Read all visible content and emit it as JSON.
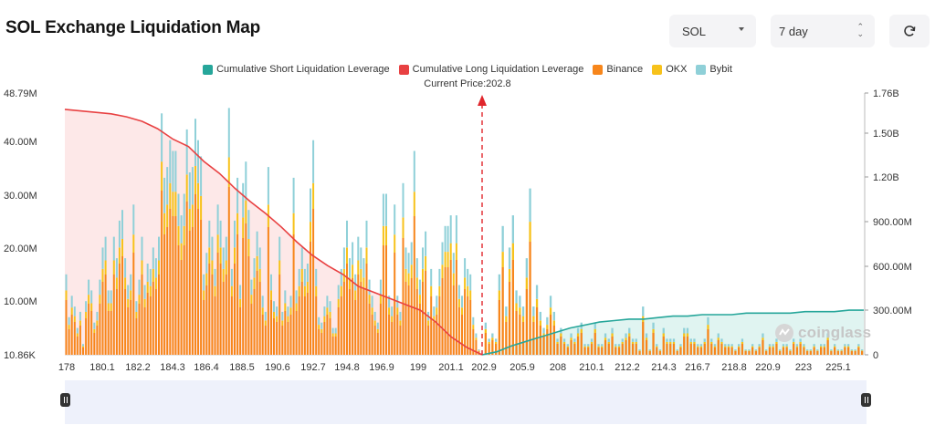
{
  "header": {
    "title": "SOL Exchange Liquidation Map",
    "asset_select": "SOL",
    "range_select": "7 day",
    "refresh_icon": "refresh-icon"
  },
  "legend": [
    {
      "label": "Cumulative Short Liquidation Leverage",
      "color": "#26a69a"
    },
    {
      "label": "Cumulative Long Liquidation Leverage",
      "color": "#e84142"
    },
    {
      "label": "Binance",
      "color": "#f7861b"
    },
    {
      "label": "OKX",
      "color": "#f7c21b"
    },
    {
      "label": "Bybit",
      "color": "#8fd0d8"
    }
  ],
  "current_price_label": "Current Price:202.8",
  "watermark": "coinglass",
  "chart_data": {
    "type": "bar",
    "current_price": 202.8,
    "x_ticks": [
      "178",
      "180.1",
      "182.2",
      "184.3",
      "186.4",
      "188.5",
      "190.6",
      "192.7",
      "194.8",
      "196.9",
      "199",
      "201.1",
      "202.9",
      "205.9",
      "208",
      "210.1",
      "212.2",
      "214.3",
      "216.7",
      "218.8",
      "220.9",
      "223",
      "225.1"
    ],
    "y_left_ticks": [
      "48.79M",
      "40.00M",
      "30.00M",
      "20.00M",
      "10.00M",
      "10.86K"
    ],
    "y_right_ticks": [
      "1.76B",
      "1.50B",
      "1.20B",
      "900.00M",
      "600.00M",
      "300.00M",
      "0"
    ],
    "ylim_left": [
      0,
      48.79
    ],
    "ylim_right": [
      0,
      1.76
    ],
    "long_bars_total_M": [
      15,
      7,
      11,
      9,
      5,
      8,
      2,
      10,
      14,
      12,
      6,
      8,
      14,
      20,
      22,
      12,
      12,
      22,
      18,
      25,
      27,
      18,
      13,
      15,
      28,
      10,
      14,
      22,
      13,
      17,
      16,
      20,
      18,
      22,
      45,
      33,
      35,
      40,
      38,
      38,
      30,
      26,
      30,
      42,
      34,
      35,
      44,
      40,
      37,
      15,
      19,
      25,
      22,
      16,
      28,
      25,
      20,
      22,
      46,
      16,
      25,
      33,
      13,
      32,
      36,
      27,
      14,
      18,
      23,
      20,
      11,
      8,
      35,
      15,
      10,
      9,
      22,
      8,
      12,
      9,
      11,
      33,
      12,
      16,
      20,
      16,
      17,
      31,
      40,
      16,
      7,
      6,
      9,
      11,
      10,
      5,
      5,
      13,
      16,
      20,
      25,
      18,
      21,
      15,
      22,
      20,
      18,
      25,
      14,
      11,
      8,
      6,
      14,
      30,
      30,
      11,
      9,
      28,
      11,
      8,
      32,
      20,
      19,
      21,
      38,
      18,
      14,
      20,
      23,
      8,
      16,
      9,
      11,
      16,
      21,
      24,
      24,
      26,
      19,
      26,
      13,
      11,
      18,
      16,
      15,
      7,
      4,
      1
    ],
    "short_bars_total_M": [
      6,
      3,
      4,
      3,
      15,
      24,
      9,
      20,
      26,
      12,
      11,
      9,
      18,
      31,
      9,
      13,
      8,
      5,
      7,
      11,
      8,
      3,
      5,
      3,
      2,
      4,
      3,
      5,
      6,
      2,
      2,
      3,
      6,
      2,
      2,
      4,
      3,
      5,
      2,
      2,
      3,
      4,
      5,
      3,
      3,
      1,
      9,
      4,
      1,
      6,
      2,
      1,
      5,
      3,
      3,
      3,
      1,
      2,
      5,
      5,
      3,
      3,
      2,
      2,
      3,
      7,
      3,
      2,
      4,
      3,
      2,
      2,
      2,
      1,
      2,
      3,
      1,
      1,
      2,
      1,
      2,
      4,
      1,
      2,
      2,
      3,
      1,
      2,
      2,
      1,
      3,
      2,
      3,
      2,
      1,
      1,
      2,
      1,
      2,
      2,
      4,
      1,
      2,
      1,
      1,
      2,
      2,
      1,
      1,
      2,
      1
    ],
    "cumulative_long_B": [
      1.65,
      1.64,
      1.63,
      1.62,
      1.6,
      1.57,
      1.52,
      1.45,
      1.4,
      1.3,
      1.22,
      1.12,
      1.03,
      0.95,
      0.86,
      0.76,
      0.67,
      0.6,
      0.54,
      0.46,
      0.42,
      0.38,
      0.34,
      0.3,
      0.22,
      0.12,
      0.05,
      0.0
    ],
    "cumulative_short_B": [
      0.0,
      0.02,
      0.06,
      0.09,
      0.12,
      0.15,
      0.18,
      0.2,
      0.22,
      0.23,
      0.24,
      0.24,
      0.25,
      0.26,
      0.26,
      0.27,
      0.27,
      0.27,
      0.28,
      0.28,
      0.28,
      0.28,
      0.29,
      0.29,
      0.29,
      0.3,
      0.3
    ],
    "bar_share": {
      "binance": 0.68,
      "okx": 0.12,
      "bybit": 0.2
    }
  }
}
